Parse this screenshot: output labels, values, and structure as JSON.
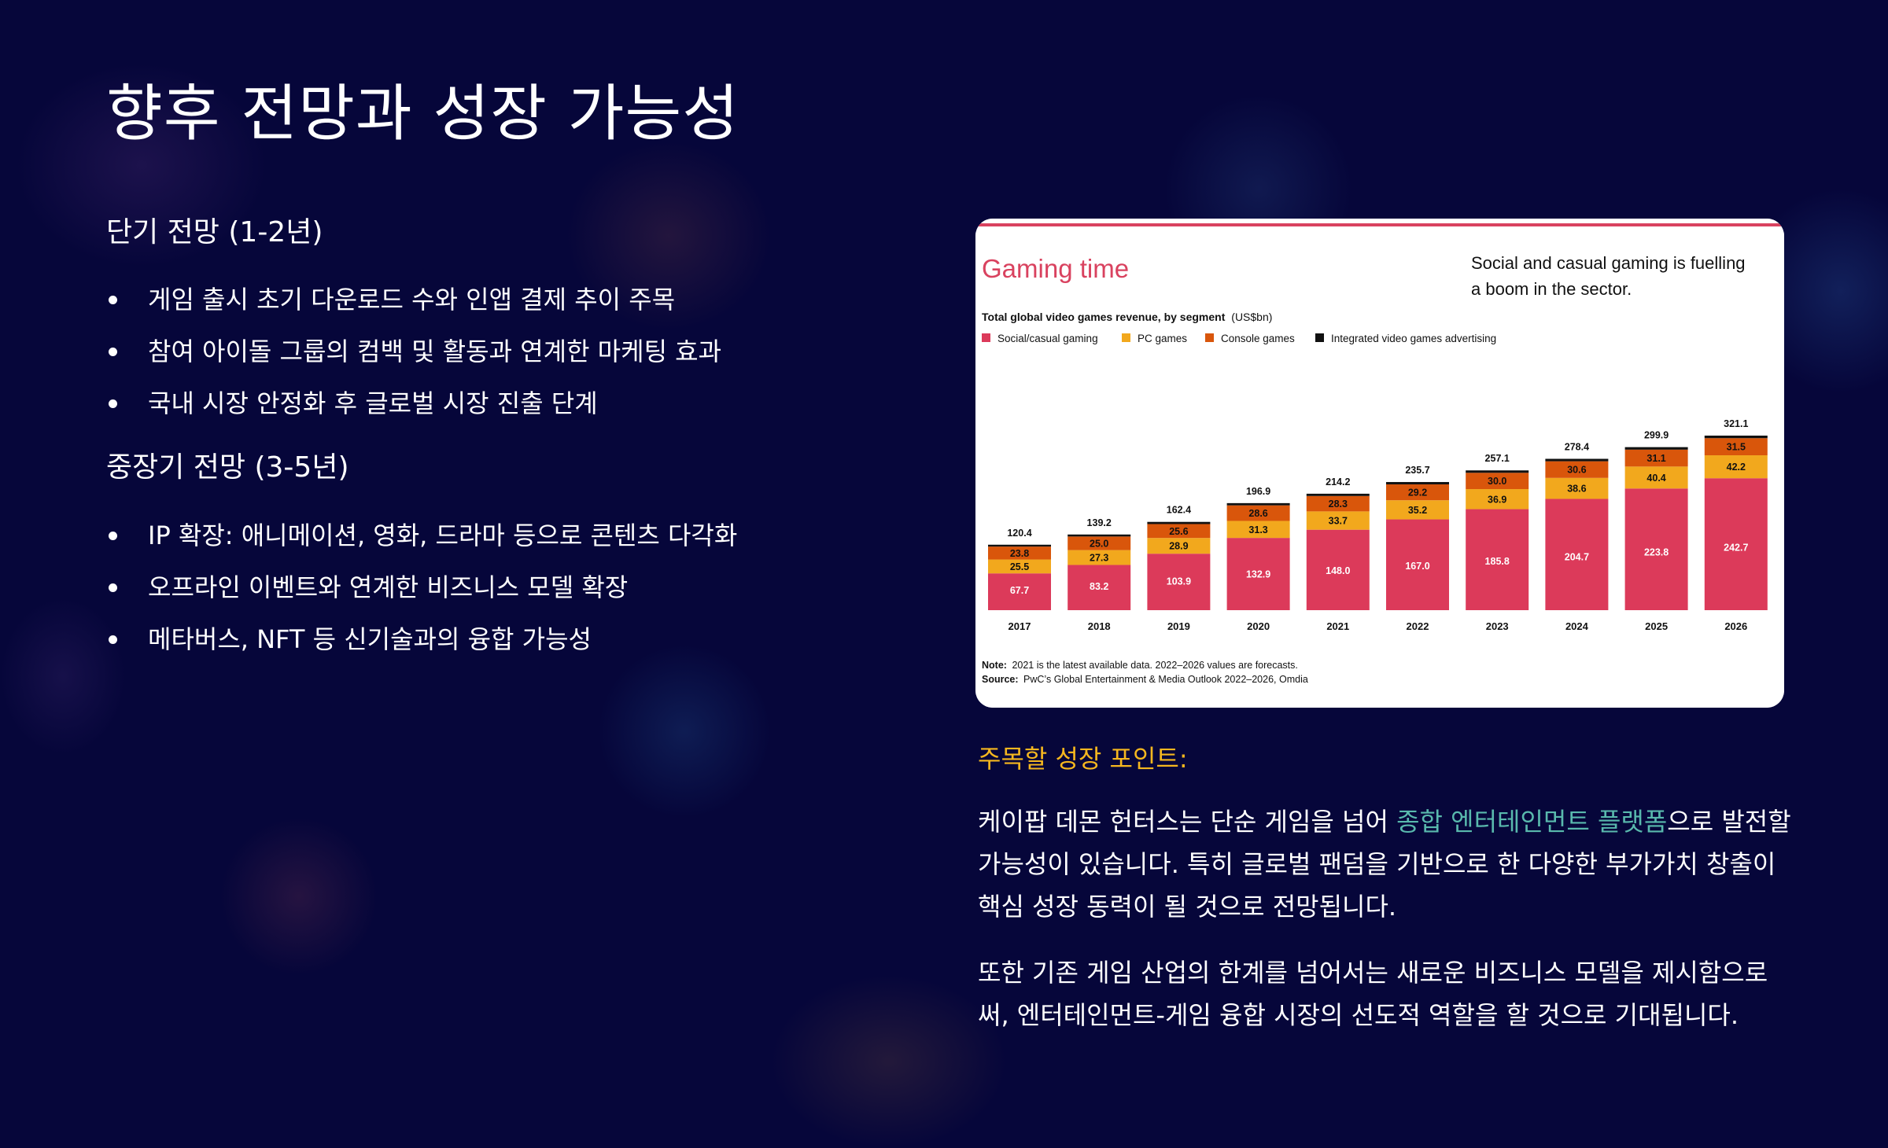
{
  "page": {
    "title": "향후 전망과 성장 가능성",
    "short_term": {
      "heading": "단기 전망 (1-2년)",
      "items": [
        "게임 출시 초기 다운로드 수와 인앱 결제 추이 주목",
        "참여 아이돌 그룹의 컴백 및 활동과 연계한 마케팅 효과",
        "국내 시장 안정화 후 글로벌 시장 진출 단계"
      ]
    },
    "mid_long_term": {
      "heading": "중장기 전망 (3-5년)",
      "items": [
        "IP 확장: 애니메이션, 영화, 드라마 등으로 콘텐츠 다각화",
        "오프라인 이벤트와 연계한 비즈니스 모델 확장",
        "메타버스, NFT 등 신기술과의 융합 가능성"
      ]
    },
    "growth_points": {
      "title": "주목할 성장 포인트:",
      "para1_before": "케이팝 데몬 헌터스는 단순 게임을 넘어 ",
      "para1_highlight": "종합 엔터테인먼트 플랫폼",
      "para1_after": "으로 발전할 가능성이 있습니다. 특히 글로벌 팬덤을 기반으로 한 다양한 부가가치 창출이 핵심 성장 동력이 될 것으로 전망됩니다.",
      "para2": "또한 기존 게임 산업의 한계를 넘어서는 새로운 비즈니스 모델을 제시함으로써, 엔터테인먼트-게임 융합 시장의 선도적 역할을 할 것으로 기대됩니다.",
      "highlight_color": "#59b9ad",
      "title_color": "#f5b71f"
    }
  },
  "chart_data": {
    "type": "bar",
    "stacked": true,
    "heading": "Gaming time",
    "tagline": "Social and casual gaming is fuelling a boom in the sector.",
    "title": "Total global video games revenue, by segment",
    "unit": "(US$bn)",
    "categories": [
      "2017",
      "2018",
      "2019",
      "2020",
      "2021",
      "2022",
      "2023",
      "2024",
      "2025",
      "2026"
    ],
    "series": [
      {
        "name": "Social/casual gaming",
        "color": "#dc3a5a",
        "values": [
          67.7,
          83.2,
          103.9,
          132.9,
          148.0,
          167.0,
          185.8,
          204.7,
          223.8,
          242.7
        ]
      },
      {
        "name": "PC games",
        "color": "#f2a81d",
        "values": [
          25.5,
          27.3,
          28.9,
          31.3,
          33.7,
          35.2,
          36.9,
          38.6,
          40.4,
          42.2
        ]
      },
      {
        "name": "Console games",
        "color": "#d9560b",
        "values": [
          23.8,
          25.0,
          25.6,
          28.6,
          28.3,
          29.2,
          30.0,
          30.6,
          31.1,
          31.5
        ]
      },
      {
        "name": "Integrated video games advertising",
        "color": "#111111",
        "values": [
          3.4,
          3.7,
          4.0,
          4.1,
          4.2,
          4.3,
          4.4,
          4.5,
          4.6,
          4.7
        ]
      }
    ],
    "totals": [
      "120.4",
      "139.2",
      "162.4",
      "196.9",
      "214.2",
      "235.7",
      "257.1",
      "278.4",
      "299.9",
      "321.1"
    ],
    "labels": {
      "social": [
        "67.7",
        "83.2",
        "103.9",
        "132.9",
        "148.0",
        "167.0",
        "185.8",
        "204.7",
        "223.8",
        "242.7"
      ],
      "pc": [
        "25.5",
        "27.3",
        "28.9",
        "31.3",
        "33.7",
        "35.2",
        "36.9",
        "38.6",
        "40.4",
        "42.2"
      ],
      "console": [
        "23.8",
        "25.0",
        "25.6",
        "28.6",
        "28.3",
        "29.2",
        "30.0",
        "30.6",
        "31.1",
        "31.5"
      ]
    },
    "note_label": "Note:",
    "note": "2021 is the latest available data. 2022–2026 values are forecasts.",
    "source_label": "Source:",
    "source": "PwC’s Global Entertainment & Media Outlook 2022–2026, Omdia",
    "ylim": [
      0,
      321.1
    ],
    "grid": false,
    "legend_position": "top-left",
    "top_rule_color": "#d9425f"
  }
}
